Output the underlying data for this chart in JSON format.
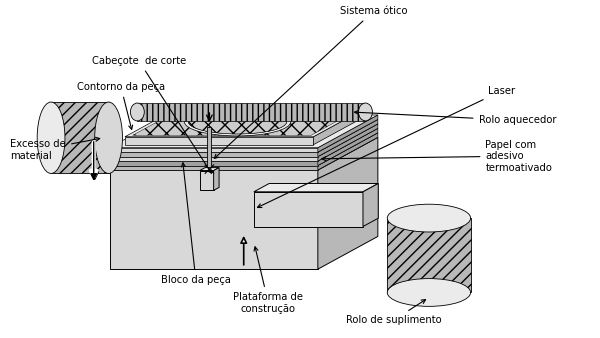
{
  "labels": {
    "sistema_otico": "Sistema ótico",
    "cabecote": "Cabeçote  de corte",
    "contorno": "Contorno da peça",
    "laser": "Laser",
    "rolo_aquecedor": "Rolo aquecedor",
    "papel": "Papel com\nadesivo\ntermoativado",
    "excesso": "Excesso de\nmaterial",
    "bloco": "Bloco da peça",
    "plataforma": "Plataforma de\nconstrução",
    "rolo_suplimento": "Rolo de suplimento"
  },
  "colors": {
    "white": "#ffffff",
    "face_light": "#ebebeb",
    "face_mid": "#d8d8d8",
    "face_dark": "#b8b8b8",
    "face_darker": "#a0a0a0",
    "hatch_bg": "#cccccc",
    "black": "#000000"
  }
}
